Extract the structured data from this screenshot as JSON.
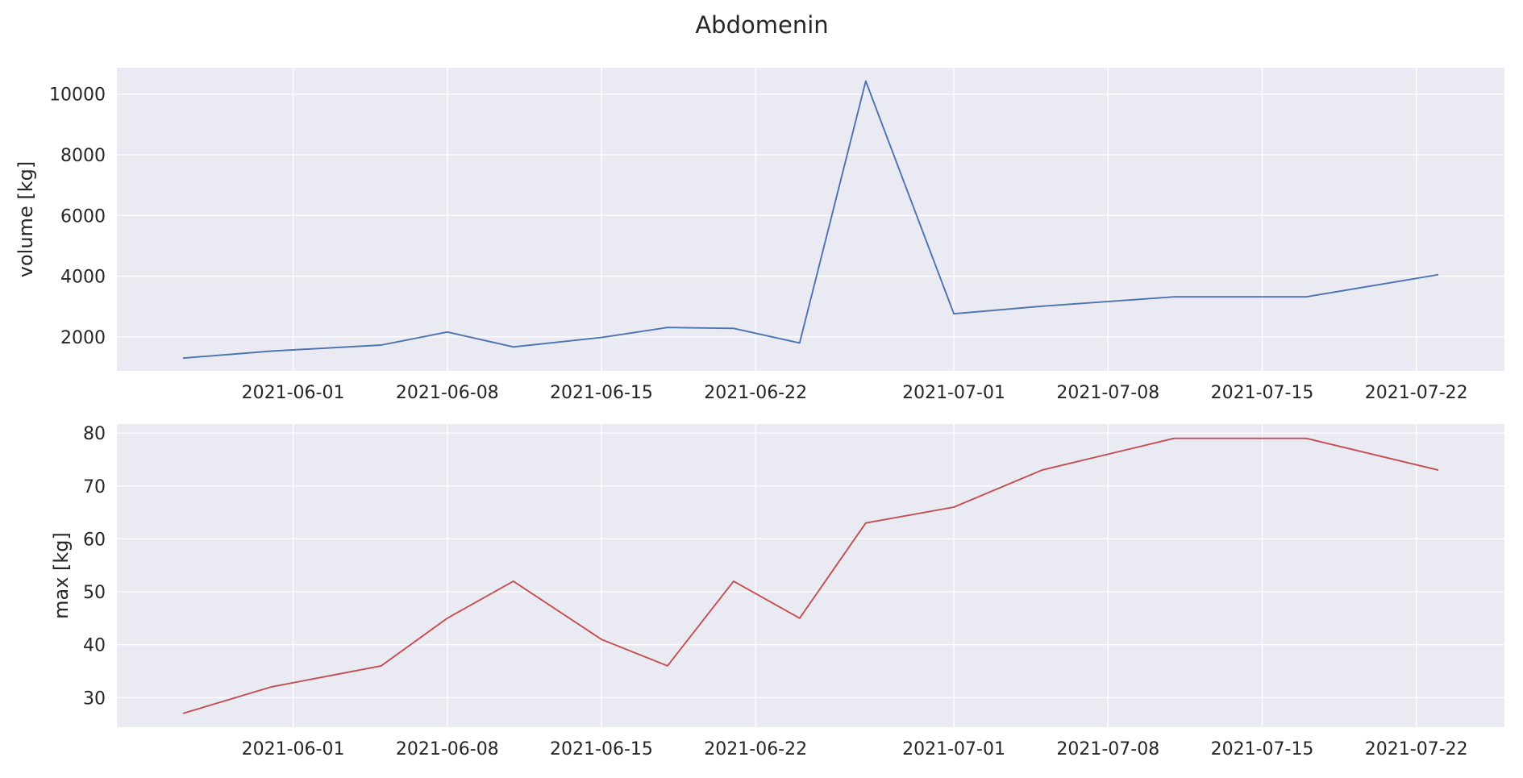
{
  "chart_data": [
    {
      "type": "line",
      "title": "Abdomenin",
      "xlabel": "",
      "ylabel": "volume [kg]",
      "x": [
        "2021-05-27",
        "2021-05-31",
        "2021-06-05",
        "2021-06-08",
        "2021-06-11",
        "2021-06-15",
        "2021-06-18",
        "2021-06-21",
        "2021-06-24",
        "2021-06-27",
        "2021-07-01",
        "2021-07-05",
        "2021-07-11",
        "2021-07-17",
        "2021-07-23"
      ],
      "series": [
        {
          "values": [
            1300,
            1530,
            1730,
            2160,
            1670,
            1980,
            2310,
            2280,
            1800,
            10430,
            2760,
            3010,
            3320,
            3320,
            4050
          ]
        }
      ],
      "xticks": [
        "2021-06-01",
        "2021-06-08",
        "2021-06-15",
        "2021-06-22",
        "2021-07-01",
        "2021-07-08",
        "2021-07-15",
        "2021-07-22"
      ],
      "yticks": [
        2000,
        4000,
        6000,
        8000,
        10000
      ],
      "xlim": [
        "2021-05-24",
        "2021-07-26"
      ],
      "ylim": [
        880,
        10870
      ],
      "grid": true,
      "color": "#4C72B0"
    },
    {
      "type": "line",
      "xlabel": "",
      "ylabel": "max [kg]",
      "x": [
        "2021-05-27",
        "2021-05-31",
        "2021-06-05",
        "2021-06-08",
        "2021-06-11",
        "2021-06-15",
        "2021-06-18",
        "2021-06-21",
        "2021-06-24",
        "2021-06-27",
        "2021-07-01",
        "2021-07-05",
        "2021-07-11",
        "2021-07-17",
        "2021-07-23"
      ],
      "series": [
        {
          "values": [
            27,
            32,
            36,
            45,
            52,
            41,
            36,
            52,
            45,
            63,
            66,
            73,
            79,
            79,
            73
          ]
        }
      ],
      "xticks": [
        "2021-06-01",
        "2021-06-08",
        "2021-06-15",
        "2021-06-22",
        "2021-07-01",
        "2021-07-08",
        "2021-07-15",
        "2021-07-22"
      ],
      "yticks": [
        30,
        40,
        50,
        60,
        70,
        80
      ],
      "xlim": [
        "2021-05-24",
        "2021-07-26"
      ],
      "ylim": [
        24.4,
        81.7
      ],
      "grid": true,
      "color": "#C44E52"
    }
  ]
}
